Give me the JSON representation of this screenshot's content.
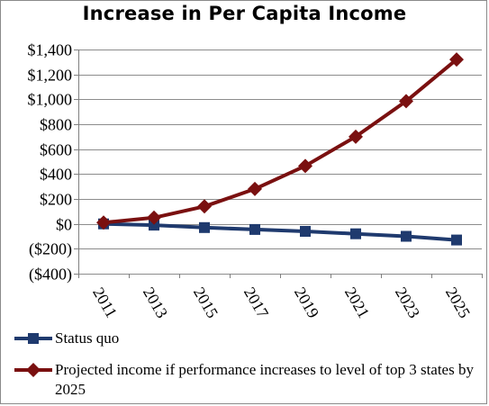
{
  "chart_data": {
    "type": "line",
    "title": "Increase in Per Capita Income",
    "x": [
      "2011",
      "2013",
      "2015",
      "2017",
      "2019",
      "2021",
      "2023",
      "2025"
    ],
    "ylim": [
      -400,
      1400
    ],
    "yticks": [
      -400,
      -200,
      0,
      200,
      400,
      600,
      800,
      1000,
      1200,
      1400
    ],
    "ytick_labels": [
      "($400)",
      "($200)",
      "$0",
      "$200",
      "$400",
      "$600",
      "$800",
      "$1,000",
      "$1,200",
      "$1,400"
    ],
    "grid": "horizontal",
    "legend_position": "bottom",
    "series": [
      {
        "name": "Status quo",
        "color": "#1f3a6e",
        "marker": "square",
        "values": [
          0,
          -10,
          -30,
          -45,
          -60,
          -80,
          -100,
          -130
        ]
      },
      {
        "name": "Projected income if performance increases to level of top 3 states by 2025",
        "color": "#7a1010",
        "marker": "diamond",
        "values": [
          10,
          50,
          140,
          280,
          465,
          700,
          985,
          1320
        ]
      }
    ]
  }
}
